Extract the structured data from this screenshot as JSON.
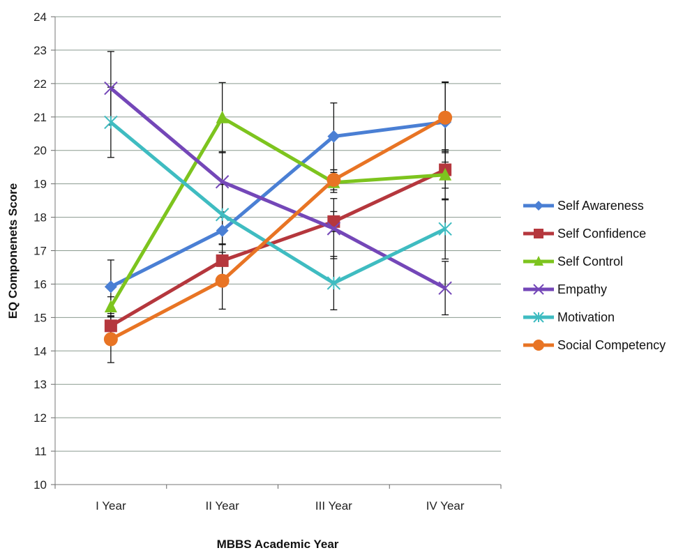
{
  "chart_data": {
    "type": "line",
    "title": "",
    "xlabel": "MBBS Academic Year",
    "ylabel": "EQ Componenets Score",
    "categories": [
      "I Year",
      "II Year",
      "III Year",
      "IV Year"
    ],
    "ylim": [
      10,
      24
    ],
    "yticks": [
      10,
      11,
      12,
      13,
      14,
      15,
      16,
      17,
      18,
      19,
      20,
      21,
      22,
      23,
      24
    ],
    "grid": true,
    "legend": "right",
    "series": [
      {
        "name": "Self Awareness",
        "color": "#4a7fd4",
        "marker": "diamond",
        "values": [
          15.92,
          17.6,
          20.42,
          20.85
        ],
        "err": [
          0.8,
          0.4,
          1.0,
          1.2
        ]
      },
      {
        "name": "Self Confidence",
        "color": "#b5373d",
        "marker": "square",
        "values": [
          14.75,
          16.7,
          17.87,
          19.42
        ],
        "err": [
          0.3,
          0.5,
          0.3,
          0.55
        ]
      },
      {
        "name": "Self Control",
        "color": "#7dc41e",
        "marker": "triangle",
        "values": [
          15.32,
          20.98,
          19.04,
          19.27
        ],
        "err": [
          0.3,
          1.05,
          0.3,
          0.75
        ]
      },
      {
        "name": "Empathy",
        "color": "#7447b8",
        "marker": "x",
        "values": [
          21.86,
          19.06,
          17.66,
          15.88
        ],
        "err": [
          1.1,
          0.9,
          0.9,
          0.8
        ]
      },
      {
        "name": "Motivation",
        "color": "#3fbcc1",
        "marker": "asterisk",
        "values": [
          20.84,
          18.08,
          16.03,
          17.65
        ],
        "err": [
          1.05,
          0.9,
          0.8,
          0.9
        ]
      },
      {
        "name": "Social Competency",
        "color": "#e87424",
        "marker": "circle",
        "values": [
          14.35,
          16.1,
          19.12,
          20.98
        ],
        "err": [
          0.7,
          0.85,
          0.3,
          1.05
        ]
      }
    ]
  }
}
